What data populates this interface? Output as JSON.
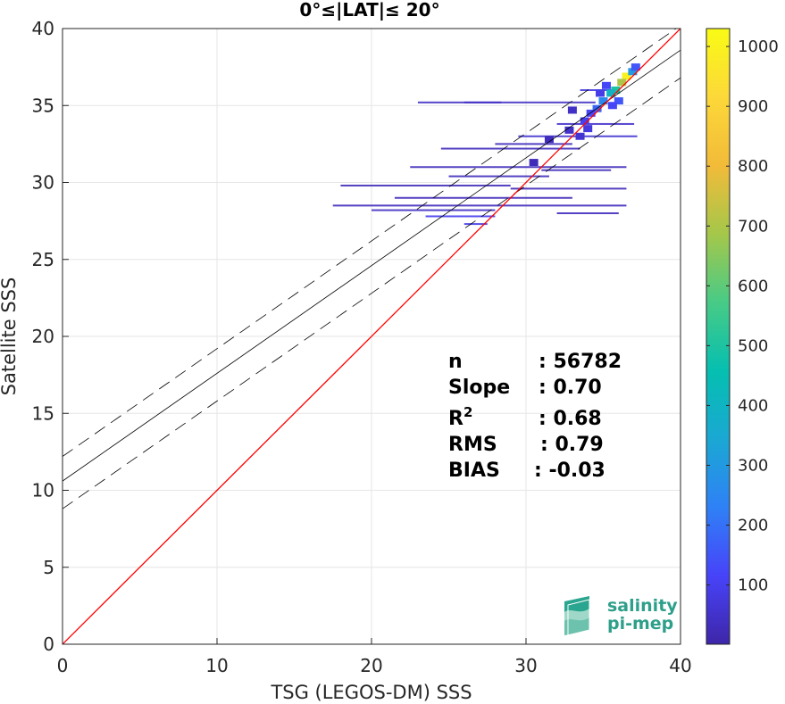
{
  "chart_data": {
    "type": "heatmap",
    "title": "0°≤|LAT|≤ 20°",
    "xlabel": "TSG (LEGOS-DM) SSS",
    "ylabel": "Satellite SSS",
    "xlim": [
      0,
      40
    ],
    "ylim": [
      0,
      40
    ],
    "x_ticks": [
      "0",
      "10",
      "20",
      "30",
      "40"
    ],
    "y_ticks": [
      "0",
      "5",
      "10",
      "15",
      "20",
      "25",
      "30",
      "35",
      "40"
    ],
    "grid": true,
    "lines": {
      "identity": {
        "color": "#ff0000",
        "slope": 1,
        "intercept": 0
      },
      "fit": {
        "color": "#000000",
        "slope": 0.7,
        "intercept": 10.6
      },
      "fit_upper": {
        "color": "#000000",
        "style": "dashed",
        "slope": 0.7,
        "intercept": 12.2
      },
      "fit_lower": {
        "color": "#000000",
        "style": "dashed",
        "slope": 0.7,
        "intercept": 8.8
      }
    },
    "density_points": [
      [
        36.5,
        36.9,
        1000
      ],
      [
        36.2,
        36.5,
        700
      ],
      [
        35.8,
        36.0,
        500
      ],
      [
        35.5,
        35.8,
        400
      ],
      [
        35.0,
        35.3,
        250
      ],
      [
        34.6,
        34.8,
        180
      ],
      [
        36.9,
        37.2,
        300
      ],
      [
        37.1,
        37.5,
        150
      ],
      [
        34.2,
        34.5,
        120
      ],
      [
        33.8,
        34.0,
        100
      ],
      [
        35.2,
        36.3,
        120
      ],
      [
        34.0,
        33.5,
        80
      ],
      [
        33.5,
        33.0,
        60
      ],
      [
        36.0,
        35.3,
        150
      ],
      [
        35.6,
        35.0,
        120
      ],
      [
        32.8,
        33.4,
        50
      ],
      [
        34.8,
        35.8,
        90
      ],
      [
        33.0,
        34.7,
        40
      ],
      [
        31.5,
        32.8,
        30
      ],
      [
        30.5,
        31.3,
        25
      ]
    ],
    "streaks": [
      [
        23.0,
        28.4,
        35.2,
        40
      ],
      [
        26.0,
        34.5,
        35.2,
        40
      ],
      [
        29.5,
        37.2,
        33.0,
        60
      ],
      [
        32.0,
        37.0,
        33.8,
        50
      ],
      [
        33.5,
        36.0,
        36.0,
        80
      ],
      [
        24.5,
        33.5,
        32.2,
        30
      ],
      [
        22.5,
        36.5,
        31.0,
        30
      ],
      [
        18.0,
        29.0,
        29.8,
        25
      ],
      [
        21.5,
        33.0,
        29.0,
        25
      ],
      [
        17.5,
        36.5,
        28.5,
        30
      ],
      [
        20.0,
        28.0,
        28.2,
        40
      ],
      [
        32.0,
        36.0,
        28.0,
        30
      ],
      [
        23.5,
        28.0,
        27.8,
        100
      ],
      [
        26.0,
        27.5,
        27.3,
        90
      ],
      [
        25.0,
        31.5,
        30.4,
        30
      ],
      [
        29.0,
        36.5,
        29.6,
        25
      ],
      [
        31.0,
        35.5,
        30.8,
        30
      ],
      [
        28.0,
        33.0,
        32.5,
        30
      ]
    ],
    "stats": [
      {
        "label": "n",
        "value": ": 56782"
      },
      {
        "label": "Slope",
        "value": ": 0.70"
      },
      {
        "label": "R",
        "sup": "2",
        "value": ": 0.68"
      },
      {
        "label": "RMS",
        "value": ": 0.79"
      },
      {
        "label": "BIAS",
        "value": ": -0.03"
      }
    ],
    "colorbar": {
      "min": 1,
      "max": 1030,
      "ticks": [
        "100",
        "200",
        "300",
        "400",
        "500",
        "600",
        "700",
        "800",
        "900",
        "1000"
      ],
      "colors": [
        "#3e26a8",
        "#4743f9",
        "#2f81f6",
        "#1aa8d3",
        "#05bfb0",
        "#48cb86",
        "#a5c74a",
        "#f2bb39",
        "#fcd839",
        "#f9fb15"
      ]
    },
    "logo": {
      "line1": "salinity",
      "line2": "pi-mep"
    }
  }
}
